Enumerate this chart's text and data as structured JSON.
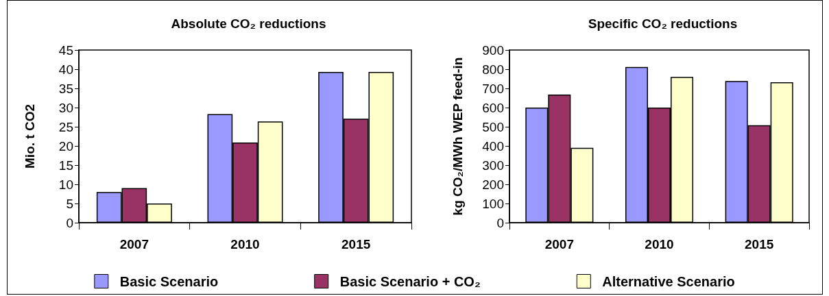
{
  "chart_data": [
    {
      "type": "bar",
      "title": "Absolute CO₂ reductions",
      "ylabel": "Mio. t CO2",
      "categories": [
        "2007",
        "2010",
        "2015"
      ],
      "series": [
        {
          "name": "Basic Scenario",
          "color": "#9999ff",
          "values": [
            8,
            28.3,
            39.3
          ]
        },
        {
          "name": "Basic Scenario + CO₂",
          "color": "#993366",
          "values": [
            9,
            20.9,
            27.1
          ]
        },
        {
          "name": "Alternative Scenario",
          "color": "#ffffcc",
          "values": [
            5,
            26.4,
            39.3
          ]
        }
      ],
      "ylim": [
        0,
        45
      ],
      "yticks": [
        0,
        5,
        10,
        15,
        20,
        25,
        30,
        35,
        40,
        45
      ],
      "grid": false,
      "legend": "bottom"
    },
    {
      "type": "bar",
      "title": "Specific CO₂ reductions",
      "ylabel": "kg CO₂/MWh WEP feed-in",
      "categories": [
        "2007",
        "2010",
        "2015"
      ],
      "series": [
        {
          "color": "#9999ff",
          "values": [
            600,
            812,
            738
          ]
        },
        {
          "color": "#993366",
          "values": [
            668,
            600,
            508
          ]
        },
        {
          "color": "#ffffcc",
          "values": [
            390,
            760,
            732
          ]
        }
      ],
      "ylim": [
        0,
        900
      ],
      "yticks": [
        0,
        100,
        200,
        300,
        400,
        500,
        600,
        700,
        800,
        900
      ],
      "grid": false
    }
  ]
}
